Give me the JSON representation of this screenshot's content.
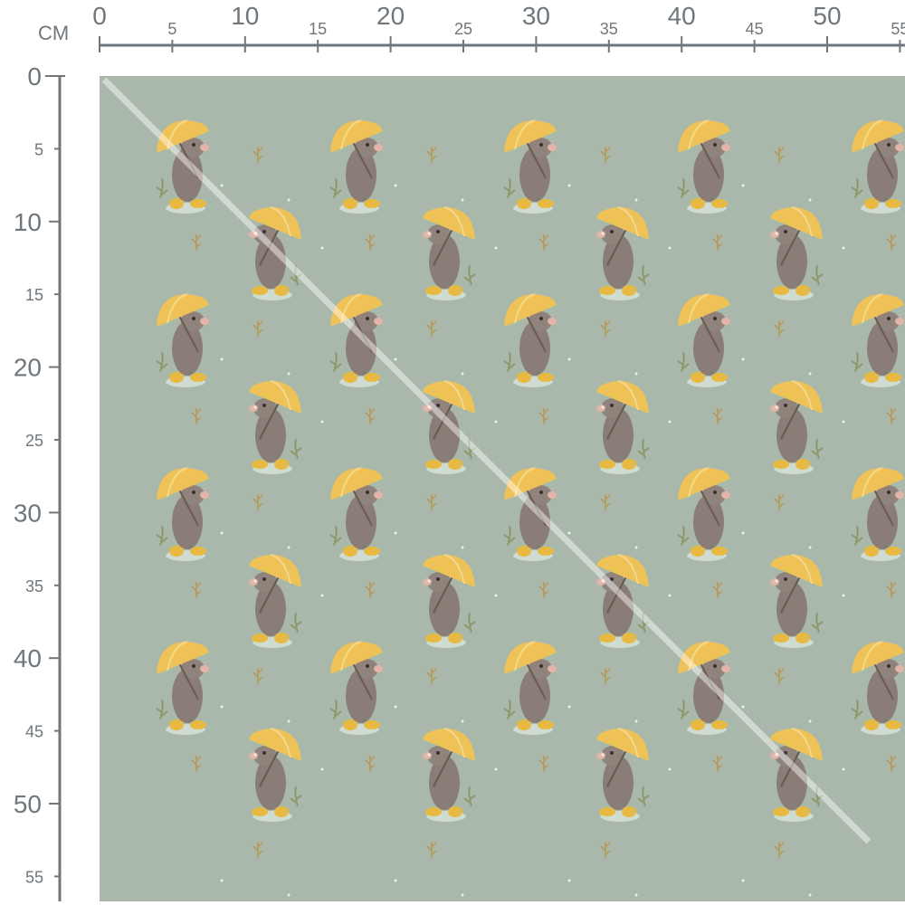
{
  "ruler": {
    "unit_label": "CM",
    "top_labels": [
      "0",
      "5",
      "10",
      "15",
      "20",
      "25",
      "30",
      "35",
      "40",
      "45",
      "50",
      "55"
    ],
    "left_labels": [
      "0",
      "5",
      "10",
      "15",
      "20",
      "25",
      "30",
      "35",
      "40",
      "45",
      "50",
      "55"
    ],
    "color": "#6f777c"
  },
  "fabric": {
    "background_color": "#a9b8ab",
    "motif": "mouse-with-yellow-umbrella",
    "umbrella_color": "#eec257",
    "mouse_color": "#8a7d77"
  }
}
